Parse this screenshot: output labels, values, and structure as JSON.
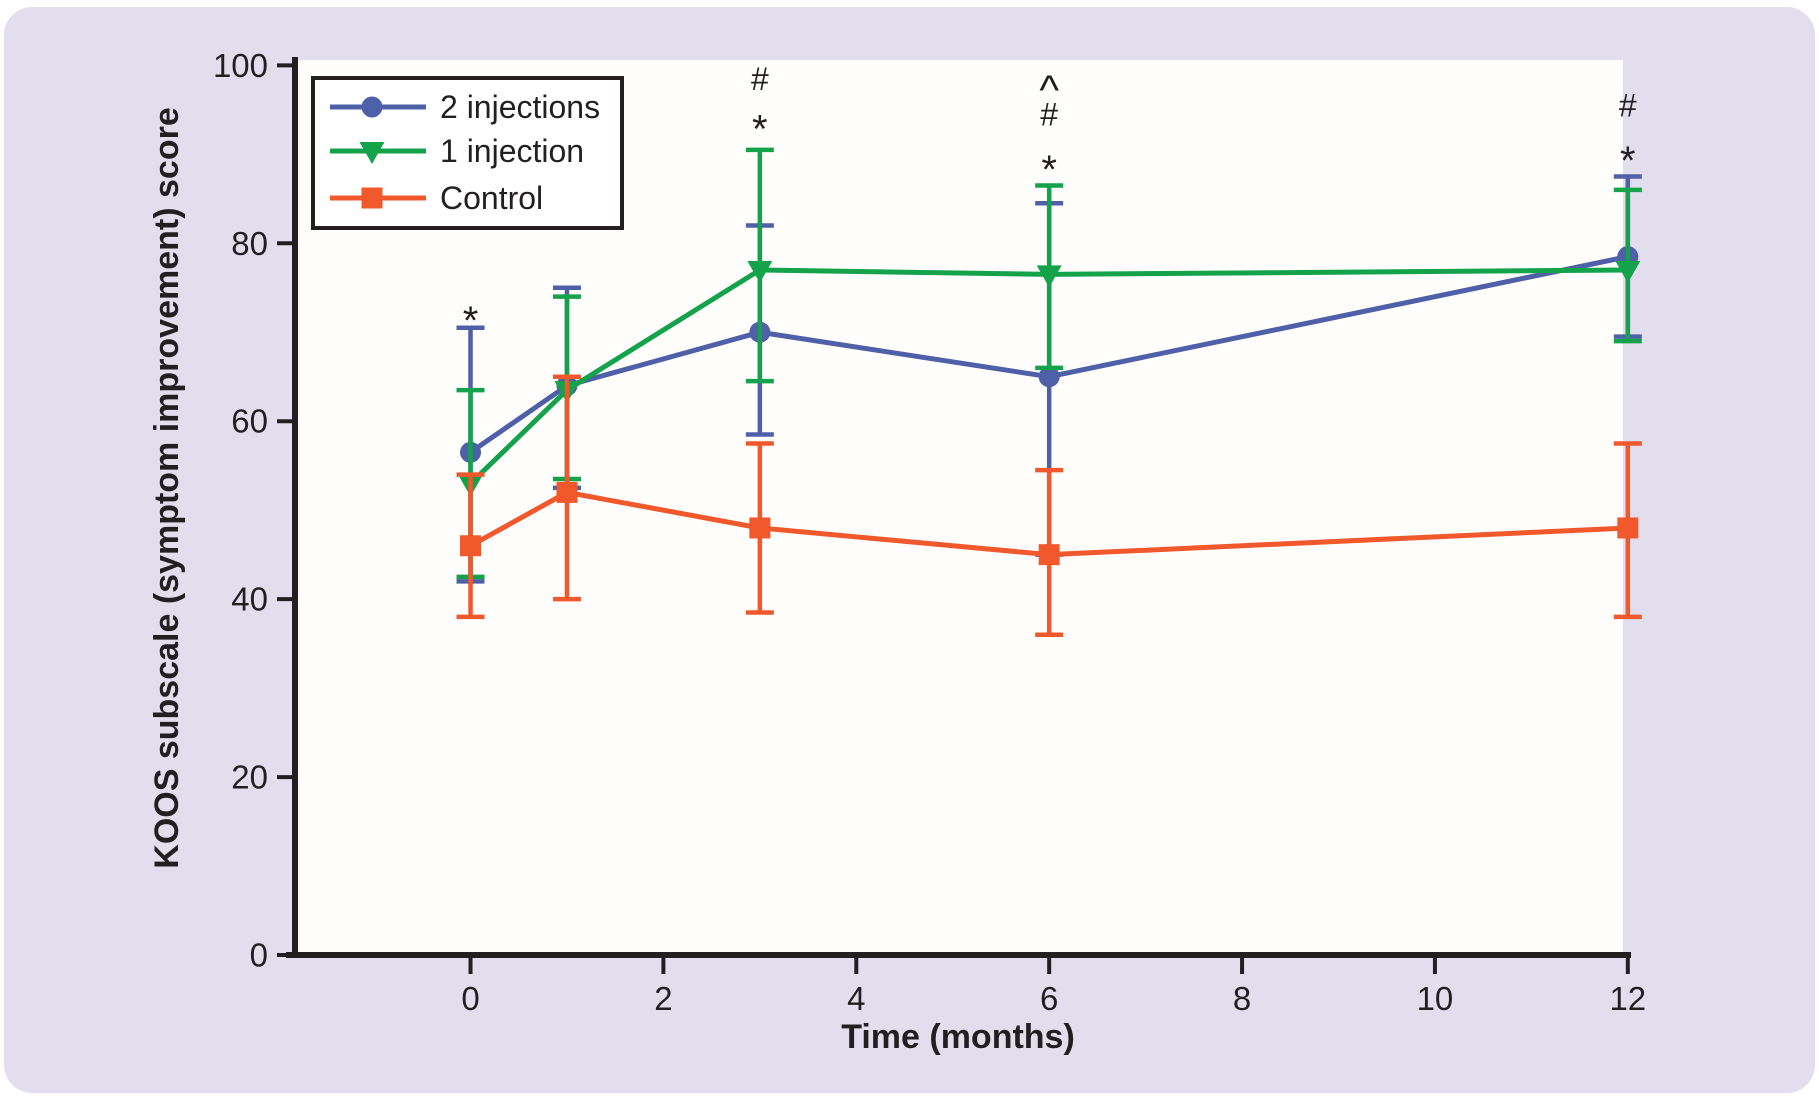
{
  "figure": {
    "background": "#ffffff",
    "panel_color": "#e3deee",
    "plot_background": "#fffefd",
    "axis_color": "#231f20",
    "text_color": "#231f20"
  },
  "chart_data": {
    "type": "line",
    "title": "",
    "xlabel": "Time (months)",
    "ylabel": "KOOS subscale (symptom improvement) score",
    "x": [
      0,
      1,
      3,
      6,
      12
    ],
    "xticks": [
      0,
      2,
      4,
      6,
      8,
      10,
      12
    ],
    "yticks": [
      0,
      20,
      40,
      60,
      80,
      100
    ],
    "xlim": [
      -1.82,
      11.95
    ],
    "ylim": [
      0,
      100.6
    ],
    "grid": false,
    "legend_position": "top-left-inside",
    "series": [
      {
        "name": "2 injections",
        "color": "#4e60a8",
        "marker": "circle",
        "values": [
          56.5,
          64,
          70,
          65,
          78.5
        ],
        "err_upper": [
          70.5,
          75,
          82,
          84.5,
          87.5
        ],
        "err_lower": [
          42,
          52.5,
          58.5,
          45,
          69.5
        ]
      },
      {
        "name": "1 injection",
        "color": "#14a24b",
        "marker": "triangle-down",
        "values": [
          53,
          63.5,
          77,
          76.5,
          77
        ],
        "err_upper": [
          63.5,
          74,
          90.5,
          86.5,
          86
        ],
        "err_lower": [
          42.5,
          53.5,
          64.5,
          66,
          69
        ]
      },
      {
        "name": "Control",
        "color": "#f1582b",
        "marker": "square",
        "values": [
          46,
          52,
          48,
          45,
          48
        ],
        "err_upper": [
          54,
          65,
          57.5,
          54.5,
          57.5
        ],
        "err_lower": [
          38,
          40,
          38.5,
          36,
          38
        ]
      }
    ],
    "annotations": [
      {
        "x": 0,
        "items": [
          {
            "symbol": "*",
            "v": 72.5
          }
        ]
      },
      {
        "x": 3,
        "items": [
          {
            "symbol": "#",
            "v": 98.5
          },
          {
            "symbol": "*",
            "v": 94
          }
        ]
      },
      {
        "x": 6,
        "items": [
          {
            "symbol": "^",
            "v": 98.5
          },
          {
            "symbol": "#",
            "v": 94.5
          },
          {
            "symbol": "*",
            "v": 89.5
          }
        ]
      },
      {
        "x": 12,
        "items": [
          {
            "symbol": "#",
            "v": 95.5
          },
          {
            "symbol": "*",
            "v": 90.5
          }
        ]
      }
    ]
  }
}
